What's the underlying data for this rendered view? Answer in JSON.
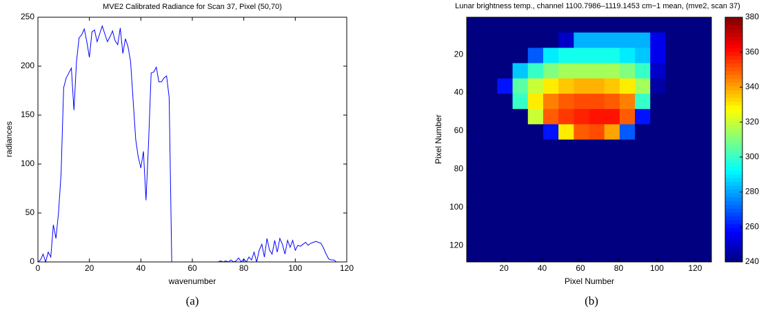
{
  "chart_data": [
    {
      "type": "line",
      "title": "MVE2 Calibrated Radiance for Scan 37, Pixel (50,70)",
      "xlabel": "wavenumber",
      "ylabel": "radiances",
      "caption": "(a)",
      "color": "#0000ff",
      "x": [
        0,
        1,
        2,
        3,
        4,
        5,
        6,
        7,
        8,
        9,
        10,
        11,
        12,
        13,
        14,
        15,
        16,
        17,
        18,
        19,
        20,
        21,
        22,
        23,
        24,
        25,
        26,
        27,
        28,
        29,
        30,
        31,
        32,
        33,
        34,
        35,
        36,
        37,
        38,
        39,
        40,
        41,
        42,
        43,
        44,
        45,
        46,
        47,
        48,
        49,
        50,
        51,
        52,
        53,
        54,
        55,
        56,
        57,
        58,
        59,
        60,
        61,
        62,
        63,
        64,
        65,
        66,
        67,
        68,
        69,
        70,
        71,
        72,
        73,
        74,
        75,
        76,
        77,
        78,
        79,
        80,
        81,
        82,
        83,
        84,
        85,
        86,
        87,
        88,
        89,
        90,
        91,
        92,
        93,
        94,
        95,
        96,
        97,
        98,
        99,
        100,
        101,
        102,
        103,
        104,
        105,
        106,
        107,
        108,
        109,
        110,
        111,
        112,
        113,
        114,
        115,
        116,
        117,
        118,
        119
      ],
      "values": [
        0,
        2,
        8,
        0,
        10,
        5,
        38,
        24,
        50,
        90,
        178,
        188,
        193,
        198,
        155,
        205,
        229,
        232,
        238,
        225,
        209,
        235,
        237,
        225,
        233,
        241,
        233,
        225,
        230,
        236,
        226,
        222,
        239,
        213,
        228,
        220,
        205,
        165,
        125,
        107,
        96,
        113,
        63,
        122,
        193,
        194,
        199,
        184,
        184,
        188,
        190,
        168,
        0,
        0,
        0,
        0,
        0,
        0,
        0,
        0,
        0,
        0,
        0,
        0,
        0,
        0,
        0,
        0,
        0,
        0,
        0,
        1,
        0,
        1,
        0,
        2,
        0,
        1,
        4,
        0,
        3,
        0,
        5,
        2,
        10,
        0,
        12,
        18,
        5,
        24,
        12,
        8,
        22,
        10,
        24,
        18,
        8,
        22,
        15,
        22,
        12,
        17,
        16,
        18,
        20,
        17,
        19,
        20,
        21,
        20,
        19,
        14,
        8,
        3,
        2,
        2,
        0,
        0,
        0,
        0
      ],
      "xlim": [
        0,
        120
      ],
      "xticks": [
        0,
        20,
        40,
        60,
        80,
        100,
        120
      ],
      "ylim": [
        0,
        250
      ],
      "yticks": [
        0,
        50,
        100,
        150,
        200,
        250
      ]
    },
    {
      "type": "heatmap",
      "title": "Lunar brightness temp., channel 1100.7986–1119.1453 cm−1 mean, (mve2, scan 37)",
      "xlabel": "Pixel Number",
      "ylabel": "Pixel Number",
      "caption": "(b)",
      "colormap": "jet",
      "y_reversed": true,
      "xlim": [
        0.5,
        128.5
      ],
      "xticks": [
        20,
        40,
        60,
        80,
        100,
        120
      ],
      "ylim": [
        0.5,
        128.5
      ],
      "yticks": [
        20,
        40,
        60,
        80,
        100,
        120
      ],
      "clim": [
        240,
        380
      ],
      "cticks": [
        240,
        260,
        280,
        300,
        320,
        340,
        360,
        380
      ],
      "z": [
        [
          240,
          240,
          240,
          240,
          240,
          240,
          240,
          240,
          240,
          240,
          240,
          240,
          240,
          240,
          240,
          240
        ],
        [
          240,
          240,
          240,
          240,
          240,
          240,
          250,
          282,
          282,
          282,
          282,
          282,
          255,
          240,
          240,
          240
        ],
        [
          240,
          240,
          240,
          240,
          270,
          290,
          295,
          295,
          295,
          295,
          290,
          285,
          255,
          240,
          240,
          240
        ],
        [
          240,
          240,
          240,
          285,
          300,
          310,
          315,
          315,
          315,
          315,
          310,
          300,
          250,
          240,
          240,
          240
        ],
        [
          240,
          240,
          260,
          305,
          320,
          330,
          335,
          338,
          338,
          335,
          330,
          315,
          245,
          240,
          240,
          240
        ],
        [
          240,
          240,
          240,
          300,
          330,
          345,
          350,
          352,
          352,
          350,
          345,
          300,
          240,
          240,
          240,
          240
        ],
        [
          240,
          240,
          240,
          240,
          320,
          350,
          355,
          358,
          360,
          360,
          350,
          260,
          240,
          240,
          240,
          240
        ],
        [
          240,
          240,
          240,
          240,
          240,
          260,
          330,
          350,
          352,
          340,
          270,
          240,
          240,
          240,
          240,
          240
        ],
        [
          240,
          240,
          240,
          240,
          240,
          240,
          240,
          240,
          240,
          240,
          240,
          240,
          240,
          240,
          240,
          240
        ],
        [
          240,
          240,
          240,
          240,
          240,
          240,
          240,
          240,
          240,
          240,
          240,
          240,
          240,
          240,
          240,
          240
        ],
        [
          240,
          240,
          240,
          240,
          240,
          240,
          240,
          240,
          240,
          240,
          240,
          240,
          240,
          240,
          240,
          240
        ],
        [
          240,
          240,
          240,
          240,
          240,
          240,
          240,
          240,
          240,
          240,
          240,
          240,
          240,
          240,
          240,
          240
        ],
        [
          240,
          240,
          240,
          240,
          240,
          240,
          240,
          240,
          240,
          240,
          240,
          240,
          240,
          240,
          240,
          240
        ],
        [
          240,
          240,
          240,
          240,
          240,
          240,
          240,
          240,
          240,
          240,
          240,
          240,
          240,
          240,
          240,
          240
        ],
        [
          240,
          240,
          240,
          240,
          240,
          240,
          240,
          240,
          240,
          240,
          240,
          240,
          240,
          240,
          240,
          240
        ],
        [
          240,
          240,
          240,
          240,
          240,
          240,
          240,
          240,
          240,
          240,
          240,
          240,
          240,
          240,
          240,
          240
        ]
      ]
    }
  ]
}
